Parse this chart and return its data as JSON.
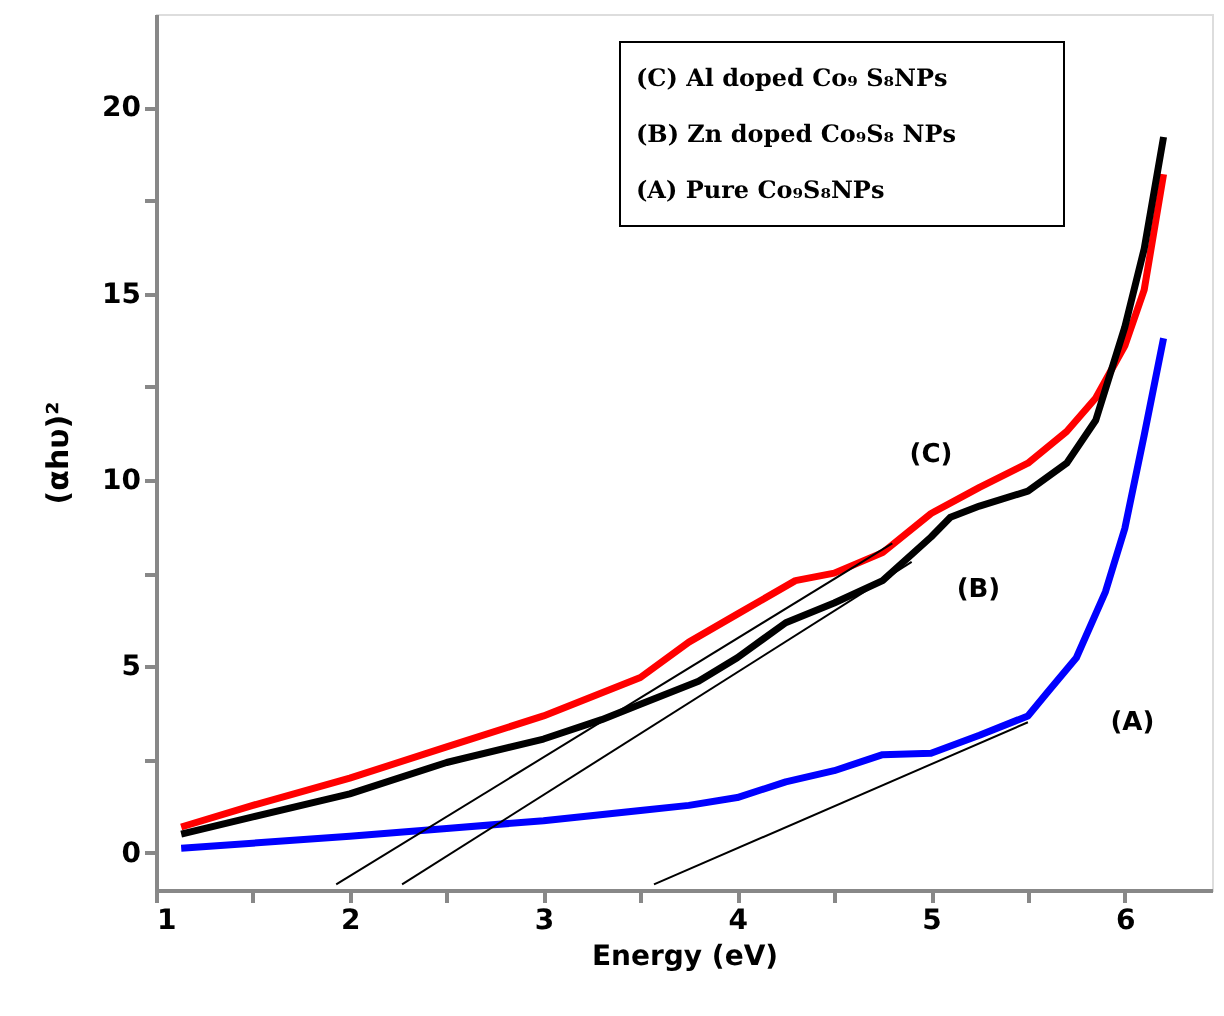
{
  "chart_data": {
    "type": "line",
    "xlabel": "Energy (eV)",
    "ylabel": "(αhυ)²",
    "xlim": [
      1,
      6.45
    ],
    "ylim": [
      -1,
      22.5
    ],
    "xticks": [
      1,
      {
        "value": 1.5,
        "label": null
      },
      2,
      {
        "value": 2.5,
        "label": null
      },
      3,
      {
        "value": 3.5,
        "label": null
      },
      4,
      {
        "value": 4.5,
        "label": null
      },
      5,
      {
        "value": 5.5,
        "label": null
      },
      6
    ],
    "yticks": [
      0,
      {
        "value": 2.5,
        "label": null
      },
      5,
      {
        "value": 7.5,
        "label": null
      },
      10,
      {
        "value": 12.5,
        "label": null
      },
      15,
      {
        "value": 17.5,
        "label": null
      },
      20
    ],
    "grid": false,
    "marker": "none",
    "line_style": "solid",
    "series": [
      {
        "color": "#ff0000",
        "x": [
          1.13,
          1.5,
          2,
          2.5,
          3,
          3.5,
          3.75,
          4,
          4.3,
          4.5,
          4.75,
          5,
          5.25,
          5.5,
          5.7,
          5.85,
          6.0,
          6.1,
          6.2
        ],
        "values": [
          0.69,
          1.27,
          2.0,
          2.84,
          3.67,
          4.7,
          5.65,
          6.4,
          7.3,
          7.5,
          8.05,
          9.1,
          9.8,
          10.45,
          11.3,
          12.2,
          13.6,
          15.1,
          18.2
        ]
      },
      {
        "color": "#000000",
        "x": [
          1.13,
          1.5,
          2,
          2.5,
          3,
          3.3,
          3.5,
          3.8,
          4,
          4.25,
          4.5,
          4.75,
          5,
          5.1,
          5.25,
          5.5,
          5.7,
          5.85,
          6.0,
          6.1,
          6.2
        ],
        "values": [
          0.5,
          0.96,
          1.58,
          2.42,
          3.05,
          3.57,
          3.98,
          4.6,
          5.23,
          6.17,
          6.7,
          7.3,
          8.47,
          9.0,
          9.3,
          9.7,
          10.45,
          11.6,
          14.1,
          16.2,
          19.2
        ]
      },
      {
        "color": "#0000ff",
        "x": [
          1.13,
          2,
          2.5,
          3,
          3.5,
          3.75,
          4,
          4.25,
          4.5,
          4.75,
          5,
          5.25,
          5.5,
          5.6,
          5.75,
          5.9,
          6.0,
          6.1,
          6.2
        ],
        "values": [
          0.12,
          0.44,
          0.65,
          0.86,
          1.13,
          1.27,
          1.48,
          1.9,
          2.2,
          2.63,
          2.67,
          3.15,
          3.67,
          4.3,
          5.23,
          7.0,
          8.7,
          11.2,
          13.8
        ]
      },
      {
        "color": "#000000",
        "x": [
          4.8,
          1.93
        ],
        "values": [
          8.3,
          -0.85
        ]
      },
      {
        "color": "#000000",
        "x": [
          4.9,
          2.27
        ],
        "values": [
          7.8,
          -0.85
        ]
      },
      {
        "color": "#000000",
        "x": [
          5.5,
          3.57
        ],
        "values": [
          3.5,
          -0.85
        ]
      }
    ],
    "annotations": [
      "(C)  Al doped Co₉ S₈NPs",
      "(B) Zn doped Co₉S₈ NPs",
      "(A) Pure Co₉S₈NPs",
      {
        "text": "(C)",
        "x": 5.0,
        "y": 9.1
      },
      {
        "text": "(B)",
        "x": 5.1,
        "y": 9.0
      },
      {
        "text": "(A)",
        "x": 5.75,
        "y": 5.23
      }
    ]
  }
}
